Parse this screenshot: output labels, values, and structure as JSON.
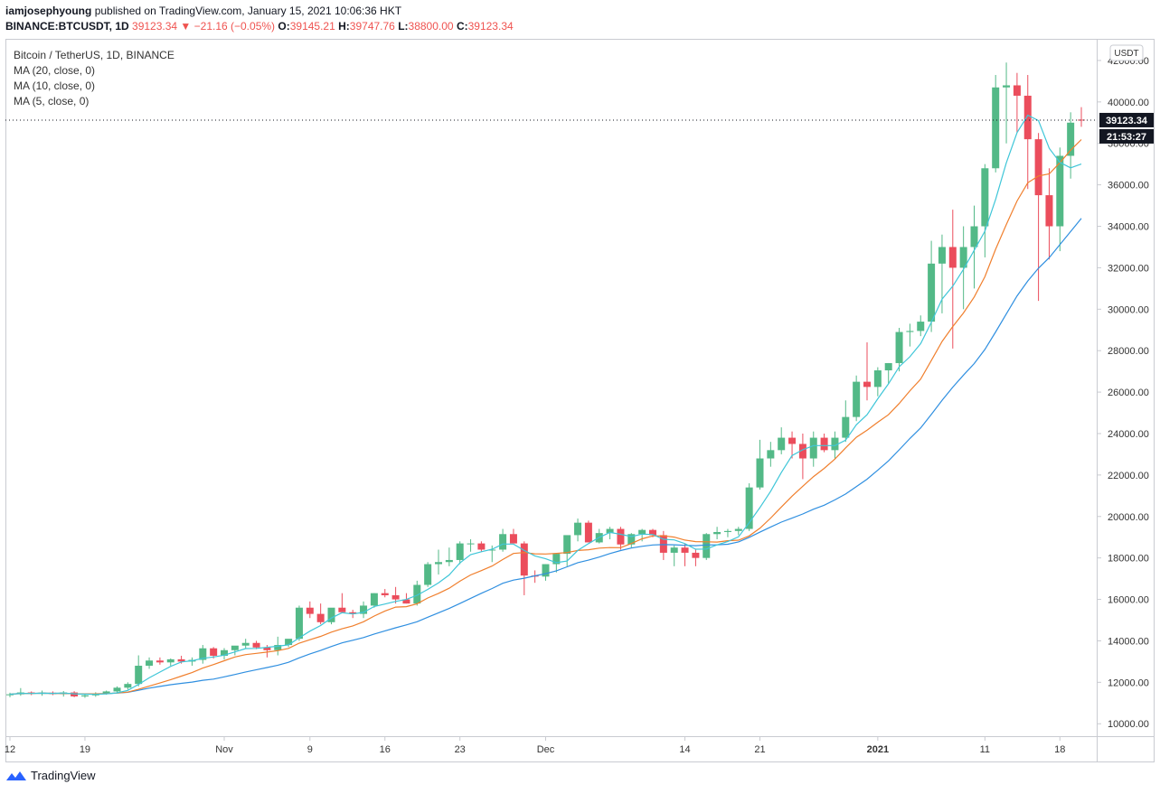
{
  "header": {
    "author": "iamjosephyoung",
    "published_text": "published on TradingView.com, January 15, 2021 10:06:36 HKT"
  },
  "ohlc_line": {
    "symbol": "BINANCE:BTCUSDT, 1D",
    "last": "39123.34",
    "change": "▼ −21.16 (−0.05%)",
    "o_label": "O:",
    "o": "39145.21",
    "h_label": "H:",
    "h": "39747.76",
    "l_label": "L:",
    "l": "38800.00",
    "c_label": "C:",
    "c": "39123.34"
  },
  "legend": {
    "title": "Bitcoin / TetherUS, 1D, BINANCE",
    "ma20": "MA (20, close, 0)",
    "ma10": "MA (10, close, 0)",
    "ma5": "MA (5, close, 0)"
  },
  "axis": {
    "currency": "USDT",
    "price_tag": "39123.34",
    "countdown_tag": "21:53:27"
  },
  "footer": {
    "brand": "TradingView"
  },
  "colors": {
    "up": "#53b987",
    "down": "#eb4d5c",
    "ma5": "#3fc6d8",
    "ma10": "#f07f2d",
    "ma20": "#2f8fe0"
  },
  "chart_data": {
    "type": "candlestick",
    "title": "Bitcoin / TetherUS, 1D, BINANCE",
    "y_ticks": [
      10000,
      12000,
      14000,
      16000,
      18000,
      20000,
      22000,
      24000,
      26000,
      28000,
      30000,
      32000,
      34000,
      36000,
      38000,
      40000,
      42000
    ],
    "y_tick_labels": [
      "10000.00",
      "12000.00",
      "14000.00",
      "16000.00",
      "18000.00",
      "20000.00",
      "22000.00",
      "24000.00",
      "26000.00",
      "28000.00",
      "30000.00",
      "32000.00",
      "34000.00",
      "36000.00",
      "38000.00",
      "40000.00",
      "42000.00"
    ],
    "ylim": [
      9400,
      43000
    ],
    "x_ticks": [
      {
        "label": "12",
        "index": 0
      },
      {
        "label": "19",
        "index": 7
      },
      {
        "label": "Nov",
        "index": 20
      },
      {
        "label": "9",
        "index": 28
      },
      {
        "label": "16",
        "index": 35
      },
      {
        "label": "23",
        "index": 42
      },
      {
        "label": "Dec",
        "index": 50
      },
      {
        "label": "14",
        "index": 63
      },
      {
        "label": "21",
        "index": 70
      },
      {
        "label": "2021",
        "index": 81
      },
      {
        "label": "11",
        "index": 91
      },
      {
        "label": "18",
        "index": 98
      }
    ],
    "candles": [
      [
        11380,
        11500,
        11280,
        11420
      ],
      [
        11420,
        11720,
        11350,
        11510
      ],
      [
        11510,
        11560,
        11380,
        11460
      ],
      [
        11460,
        11600,
        11350,
        11500
      ],
      [
        11500,
        11560,
        11380,
        11430
      ],
      [
        11430,
        11580,
        11310,
        11510
      ],
      [
        11510,
        11570,
        11280,
        11320
      ],
      [
        11320,
        11450,
        11250,
        11370
      ],
      [
        11370,
        11520,
        11300,
        11460
      ],
      [
        11460,
        11600,
        11400,
        11560
      ],
      [
        11560,
        11800,
        11500,
        11740
      ],
      [
        11740,
        12000,
        11650,
        11920
      ],
      [
        11920,
        13300,
        11800,
        12800
      ],
      [
        12800,
        13200,
        12650,
        13050
      ],
      [
        13050,
        13200,
        12850,
        12960
      ],
      [
        12960,
        13150,
        12800,
        13110
      ],
      [
        13110,
        13280,
        12900,
        13000
      ],
      [
        13000,
        13200,
        12800,
        13080
      ],
      [
        13080,
        13800,
        12900,
        13640
      ],
      [
        13640,
        13700,
        13150,
        13280
      ],
      [
        13280,
        13650,
        13100,
        13550
      ],
      [
        13550,
        13680,
        13300,
        13770
      ],
      [
        13770,
        14100,
        13650,
        13900
      ],
      [
        13900,
        14000,
        13600,
        13680
      ],
      [
        13680,
        13800,
        13200,
        13550
      ],
      [
        13550,
        14200,
        13300,
        13800
      ],
      [
        13800,
        14000,
        13700,
        14100
      ],
      [
        14100,
        15700,
        14000,
        15600
      ],
      [
        15600,
        15900,
        15100,
        15300
      ],
      [
        15300,
        15800,
        14800,
        14900
      ],
      [
        14900,
        15500,
        14800,
        15600
      ],
      [
        15600,
        16300,
        15400,
        15380
      ],
      [
        15380,
        15500,
        15100,
        15300
      ],
      [
        15300,
        15900,
        15100,
        15700
      ],
      [
        15700,
        16300,
        15600,
        16300
      ],
      [
        16300,
        16500,
        16100,
        16200
      ],
      [
        16200,
        16600,
        15800,
        16000
      ],
      [
        16000,
        16300,
        15800,
        15800
      ],
      [
        15800,
        16900,
        15700,
        16700
      ],
      [
        16700,
        17800,
        16600,
        17700
      ],
      [
        17700,
        18400,
        17200,
        17800
      ],
      [
        17800,
        18500,
        17600,
        17900
      ],
      [
        17900,
        18800,
        17700,
        18700
      ],
      [
        18700,
        18900,
        18300,
        18700
      ],
      [
        18700,
        18800,
        18300,
        18400
      ],
      [
        18400,
        18600,
        17800,
        18400
      ],
      [
        18400,
        19400,
        18300,
        19150
      ],
      [
        19150,
        19400,
        18700,
        18700
      ],
      [
        18700,
        18800,
        16200,
        17150
      ],
      [
        17150,
        17400,
        16800,
        17100
      ],
      [
        17100,
        17700,
        16900,
        17700
      ],
      [
        17700,
        18200,
        17300,
        18200
      ],
      [
        18200,
        19000,
        17600,
        19100
      ],
      [
        19100,
        19900,
        18800,
        19700
      ],
      [
        19700,
        19800,
        18800,
        18750
      ],
      [
        18750,
        19400,
        18700,
        19200
      ],
      [
        19200,
        19500,
        18900,
        19400
      ],
      [
        19400,
        19500,
        18400,
        18650
      ],
      [
        18650,
        19200,
        18500,
        19150
      ],
      [
        19150,
        19400,
        18800,
        19350
      ],
      [
        19350,
        19400,
        19000,
        19100
      ],
      [
        19100,
        19300,
        17900,
        18250
      ],
      [
        18250,
        18600,
        17600,
        18500
      ],
      [
        18500,
        18700,
        17600,
        18250
      ],
      [
        18250,
        18400,
        17600,
        18000
      ],
      [
        18000,
        19200,
        17900,
        19150
      ],
      [
        19150,
        19500,
        18900,
        19250
      ],
      [
        19250,
        19400,
        19000,
        19300
      ],
      [
        19300,
        19500,
        19100,
        19400
      ],
      [
        19400,
        21600,
        19300,
        21400
      ],
      [
        21400,
        23700,
        21300,
        22800
      ],
      [
        22800,
        23600,
        22400,
        23200
      ],
      [
        23200,
        24300,
        23000,
        23800
      ],
      [
        23800,
        24100,
        22800,
        23500
      ],
      [
        23500,
        24000,
        21800,
        22800
      ],
      [
        22800,
        24100,
        22400,
        23800
      ],
      [
        23800,
        24000,
        23100,
        23200
      ],
      [
        23200,
        24100,
        22800,
        23800
      ],
      [
        23800,
        25600,
        23600,
        24800
      ],
      [
        24800,
        26800,
        24600,
        26500
      ],
      [
        26500,
        28400,
        25600,
        26250
      ],
      [
        26250,
        27200,
        25800,
        27050
      ],
      [
        27050,
        27400,
        26400,
        27400
      ],
      [
        27400,
        29100,
        27000,
        28900
      ],
      [
        28900,
        29300,
        28200,
        28950
      ],
      [
        28950,
        29700,
        28700,
        29400
      ],
      [
        29400,
        33300,
        28900,
        32200
      ],
      [
        32200,
        33600,
        29800,
        33000
      ],
      [
        33000,
        34800,
        28100,
        32000
      ],
      [
        32000,
        34000,
        30000,
        33000
      ],
      [
        33000,
        35000,
        31000,
        34000
      ],
      [
        34000,
        37000,
        32500,
        36800
      ],
      [
        36800,
        41300,
        36600,
        40700
      ],
      [
        40700,
        41900,
        38000,
        40800
      ],
      [
        40800,
        41400,
        38500,
        40300
      ],
      [
        40300,
        41300,
        35800,
        38200
      ],
      [
        38200,
        38500,
        30400,
        35500
      ],
      [
        35500,
        36800,
        32400,
        34000
      ],
      [
        34000,
        37800,
        32800,
        37400
      ],
      [
        37400,
        39500,
        36300,
        39000
      ],
      [
        39145,
        39748,
        38800,
        39123
      ]
    ]
  }
}
